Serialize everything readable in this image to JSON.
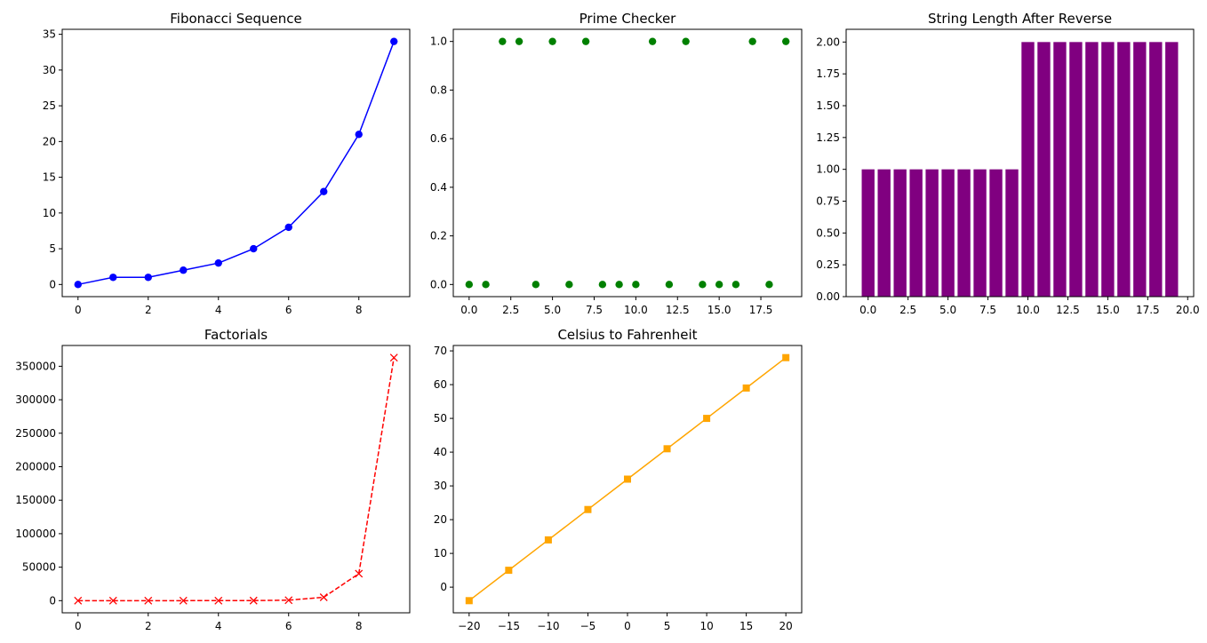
{
  "chart_data": [
    {
      "type": "line",
      "title": "Fibonacci Sequence",
      "color": "#0000ff",
      "marker": "circle",
      "line_style": "solid",
      "x": [
        0,
        1,
        2,
        3,
        4,
        5,
        6,
        7,
        8,
        9
      ],
      "y": [
        0,
        1,
        1,
        2,
        3,
        5,
        8,
        13,
        21,
        34
      ],
      "xlim": [
        -0.45,
        9.45
      ],
      "ylim": [
        -1.7,
        35.7
      ],
      "xticks": [
        0,
        2,
        4,
        6,
        8
      ],
      "yticks": [
        0,
        5,
        10,
        15,
        20,
        25,
        30,
        35
      ]
    },
    {
      "type": "scatter",
      "title": "Prime Checker",
      "color": "#008000",
      "marker": "circle",
      "x": [
        0,
        1,
        2,
        3,
        4,
        5,
        6,
        7,
        8,
        9,
        10,
        11,
        12,
        13,
        14,
        15,
        16,
        17,
        18,
        19
      ],
      "y": [
        0,
        0,
        1,
        1,
        0,
        1,
        0,
        1,
        0,
        0,
        0,
        1,
        0,
        1,
        0,
        0,
        0,
        1,
        0,
        1
      ],
      "xlim": [
        -0.95,
        19.95
      ],
      "ylim": [
        -0.05,
        1.05
      ],
      "xticks": [
        0.0,
        2.5,
        5.0,
        7.5,
        10.0,
        12.5,
        15.0,
        17.5
      ],
      "xtick_labels": [
        "0.0",
        "2.5",
        "5.0",
        "7.5",
        "10.0",
        "12.5",
        "15.0",
        "17.5"
      ],
      "yticks": [
        0.0,
        0.2,
        0.4,
        0.6,
        0.8,
        1.0
      ],
      "ytick_labels": [
        "0.0",
        "0.2",
        "0.4",
        "0.6",
        "0.8",
        "1.0"
      ]
    },
    {
      "type": "bar",
      "title": "String Length After Reverse",
      "color": "#800080",
      "x": [
        0,
        1,
        2,
        3,
        4,
        5,
        6,
        7,
        8,
        9,
        10,
        11,
        12,
        13,
        14,
        15,
        16,
        17,
        18,
        19
      ],
      "values": [
        1,
        1,
        1,
        1,
        1,
        1,
        1,
        1,
        1,
        1,
        2,
        2,
        2,
        2,
        2,
        2,
        2,
        2,
        2,
        2
      ],
      "bar_width": 0.8,
      "xlim": [
        -1.375,
        20.375
      ],
      "ylim": [
        0,
        2.1
      ],
      "xticks": [
        0.0,
        2.5,
        5.0,
        7.5,
        10.0,
        12.5,
        15.0,
        17.5,
        20.0
      ],
      "xtick_labels": [
        "0.0",
        "2.5",
        "5.0",
        "7.5",
        "10.0",
        "12.5",
        "15.0",
        "17.5",
        "20.0"
      ],
      "yticks": [
        0.0,
        0.25,
        0.5,
        0.75,
        1.0,
        1.25,
        1.5,
        1.75,
        2.0
      ],
      "ytick_labels": [
        "0.00",
        "0.25",
        "0.50",
        "0.75",
        "1.00",
        "1.25",
        "1.50",
        "1.75",
        "2.00"
      ]
    },
    {
      "type": "line",
      "title": "Factorials",
      "color": "#ff0000",
      "marker": "x",
      "line_style": "dashed",
      "x": [
        0,
        1,
        2,
        3,
        4,
        5,
        6,
        7,
        8,
        9
      ],
      "y": [
        1,
        1,
        2,
        6,
        24,
        120,
        720,
        5040,
        40320,
        362880
      ],
      "xlim": [
        -0.45,
        9.45
      ],
      "ylim": [
        -18143,
        381024
      ],
      "xticks": [
        0,
        2,
        4,
        6,
        8
      ],
      "yticks": [
        0,
        50000,
        100000,
        150000,
        200000,
        250000,
        300000,
        350000
      ]
    },
    {
      "type": "line",
      "title": "Celsius to Fahrenheit",
      "color": "#ffa500",
      "marker": "square",
      "line_style": "solid",
      "x": [
        -20,
        -15,
        -10,
        -5,
        0,
        5,
        10,
        15,
        20
      ],
      "y": [
        -4,
        5,
        14,
        23,
        32,
        41,
        50,
        59,
        68
      ],
      "xlim": [
        -22,
        22
      ],
      "ylim": [
        -7.6,
        71.6
      ],
      "xticks": [
        -20,
        -15,
        -10,
        -5,
        0,
        5,
        10,
        15,
        20
      ],
      "xtick_labels": [
        "−20",
        "−15",
        "−10",
        "−5",
        "0",
        "5",
        "10",
        "15",
        "20"
      ],
      "yticks": [
        0,
        10,
        20,
        30,
        40,
        50,
        60,
        70
      ]
    }
  ]
}
